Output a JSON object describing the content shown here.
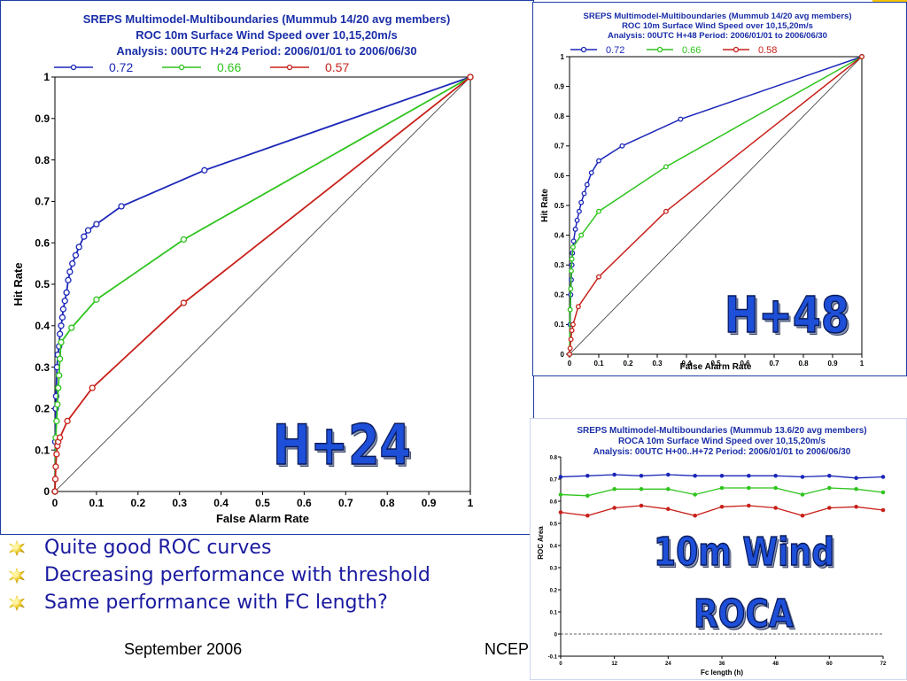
{
  "chart_data": [
    {
      "id": "roc_h24",
      "type": "line",
      "title": [
        "SREPS Multimodel-Multiboundaries   (Mummub 14/20 avg members)",
        "ROC  10m Surface Wind Speed over 10,15,20m/s",
        "Analysis: 00UTC  H+24    Period: 2006/01/01 to 2006/06/30"
      ],
      "xlabel": "False Alarm Rate",
      "ylabel": "Hit Rate",
      "xlim": [
        0,
        1
      ],
      "ylim": [
        0,
        1
      ],
      "xticks": [
        "0",
        "0.1",
        "0.2",
        "0.3",
        "0.4",
        "0.5",
        "0.6",
        "0.7",
        "0.8",
        "0.9",
        "1"
      ],
      "yticks": [
        "0",
        "0.1",
        "0.2",
        "0.3",
        "0.4",
        "0.5",
        "0.6",
        "0.7",
        "0.8",
        "0.9",
        "1"
      ],
      "grid": false,
      "diagonal": true,
      "legend_position": "top",
      "series": [
        {
          "name": "0.72",
          "color": "#1b27b8",
          "points": [
            [
              0,
              0
            ],
            [
              0.001,
              0.12
            ],
            [
              0.002,
              0.2
            ],
            [
              0.003,
              0.23
            ],
            [
              0.005,
              0.3
            ],
            [
              0.007,
              0.33
            ],
            [
              0.01,
              0.35
            ],
            [
              0.012,
              0.38
            ],
            [
              0.015,
              0.4
            ],
            [
              0.018,
              0.42
            ],
            [
              0.02,
              0.44
            ],
            [
              0.024,
              0.46
            ],
            [
              0.028,
              0.48
            ],
            [
              0.032,
              0.51
            ],
            [
              0.036,
              0.53
            ],
            [
              0.042,
              0.55
            ],
            [
              0.05,
              0.57
            ],
            [
              0.058,
              0.59
            ],
            [
              0.07,
              0.615
            ],
            [
              0.08,
              0.63
            ],
            [
              0.1,
              0.645
            ],
            [
              0.16,
              0.688
            ],
            [
              0.36,
              0.775
            ],
            [
              1,
              1
            ]
          ]
        },
        {
          "name": "0.66",
          "color": "#2fc41e",
          "points": [
            [
              0,
              0
            ],
            [
              0.002,
              0.13
            ],
            [
              0.004,
              0.17
            ],
            [
              0.006,
              0.21
            ],
            [
              0.008,
              0.25
            ],
            [
              0.01,
              0.28
            ],
            [
              0.012,
              0.32
            ],
            [
              0.015,
              0.36
            ],
            [
              0.04,
              0.395
            ],
            [
              0.1,
              0.463
            ],
            [
              0.31,
              0.608
            ],
            [
              1,
              1
            ]
          ]
        },
        {
          "name": "0.57",
          "color": "#c8201a",
          "points": [
            [
              0,
              0
            ],
            [
              0.001,
              0.03
            ],
            [
              0.002,
              0.06
            ],
            [
              0.004,
              0.09
            ],
            [
              0.006,
              0.11
            ],
            [
              0.008,
              0.12
            ],
            [
              0.012,
              0.13
            ],
            [
              0.03,
              0.17
            ],
            [
              0.09,
              0.25
            ],
            [
              0.31,
              0.455
            ],
            [
              1,
              1
            ]
          ]
        }
      ]
    },
    {
      "id": "roc_h48",
      "type": "line",
      "title": [
        "SREPS Multimodel-Multiboundaries   (Mummub 14/20 avg members)",
        "ROC  10m Surface Wind Speed over 10,15,20m/s",
        "Analysis: 00UTC  H+48    Period: 2006/01/01 to 2006/06/30"
      ],
      "xlabel": "False Alarm Rate",
      "ylabel": "Hit Rate",
      "xlim": [
        0,
        1
      ],
      "ylim": [
        0,
        1
      ],
      "xticks": [
        "0",
        "0.1",
        "0.2",
        "0.3",
        "0.4",
        "0.5",
        "0.6",
        "0.7",
        "0.8",
        "0.9",
        "1"
      ],
      "yticks": [
        "0",
        "0.1",
        "0.2",
        "0.3",
        "0.4",
        "0.5",
        "0.6",
        "0.7",
        "0.8",
        "0.9",
        "1"
      ],
      "grid": false,
      "diagonal": true,
      "legend_position": "top",
      "series": [
        {
          "name": "0.72",
          "color": "#1b27b8",
          "points": [
            [
              0,
              0
            ],
            [
              0.002,
              0.1
            ],
            [
              0.004,
              0.2
            ],
            [
              0.006,
              0.25
            ],
            [
              0.008,
              0.3
            ],
            [
              0.01,
              0.34
            ],
            [
              0.014,
              0.38
            ],
            [
              0.02,
              0.42
            ],
            [
              0.026,
              0.45
            ],
            [
              0.033,
              0.48
            ],
            [
              0.04,
              0.51
            ],
            [
              0.05,
              0.54
            ],
            [
              0.06,
              0.57
            ],
            [
              0.075,
              0.61
            ],
            [
              0.1,
              0.65
            ],
            [
              0.18,
              0.7
            ],
            [
              0.38,
              0.79
            ],
            [
              1,
              1
            ]
          ]
        },
        {
          "name": "0.66",
          "color": "#2fc41e",
          "points": [
            [
              0,
              0
            ],
            [
              0.002,
              0.15
            ],
            [
              0.004,
              0.22
            ],
            [
              0.006,
              0.28
            ],
            [
              0.008,
              0.32
            ],
            [
              0.012,
              0.36
            ],
            [
              0.04,
              0.4
            ],
            [
              0.1,
              0.48
            ],
            [
              0.33,
              0.63
            ],
            [
              1,
              1
            ]
          ]
        },
        {
          "name": "0.58",
          "color": "#c8201a",
          "points": [
            [
              0,
              0
            ],
            [
              0.002,
              0.02
            ],
            [
              0.005,
              0.05
            ],
            [
              0.008,
              0.08
            ],
            [
              0.012,
              0.1
            ],
            [
              0.03,
              0.16
            ],
            [
              0.1,
              0.26
            ],
            [
              0.33,
              0.48
            ],
            [
              1,
              1
            ]
          ]
        }
      ]
    },
    {
      "id": "roca",
      "type": "line",
      "title": [
        "SREPS Multimodel-Multiboundaries   (Mummub 13.6/20 avg members)",
        "ROCA  10m Surface Wind Speed over 10,15,20m/s",
        "Analysis: 00UTC  H+00..H+72   Period: 2006/01/01 to 2006/06/30"
      ],
      "xlabel": "Fc length (h)",
      "ylabel": "ROC Area",
      "xlim": [
        0,
        72
      ],
      "ylim": [
        -0.1,
        0.8
      ],
      "xticks": [
        "0",
        "12",
        "24",
        "36",
        "48",
        "60",
        "72"
      ],
      "yticks": [
        "-0.1",
        "0",
        "0.1",
        "0.2",
        "0.3",
        "0.4",
        "0.5",
        "0.6",
        "0.7",
        "0.8"
      ],
      "grid": false,
      "zero_line": "dashed",
      "series": [
        {
          "name": "",
          "color": "#1b27b8",
          "x": [
            0,
            6,
            12,
            18,
            24,
            30,
            36,
            42,
            48,
            54,
            60,
            66,
            72
          ],
          "values": [
            0.71,
            0.715,
            0.72,
            0.715,
            0.72,
            0.715,
            0.715,
            0.715,
            0.715,
            0.71,
            0.715,
            0.705,
            0.71
          ]
        },
        {
          "name": "",
          "color": "#2fc41e",
          "x": [
            0,
            6,
            12,
            18,
            24,
            30,
            36,
            42,
            48,
            54,
            60,
            66,
            72
          ],
          "values": [
            0.63,
            0.625,
            0.655,
            0.655,
            0.655,
            0.63,
            0.66,
            0.66,
            0.66,
            0.63,
            0.66,
            0.655,
            0.64
          ]
        },
        {
          "name": "",
          "color": "#c8201a",
          "x": [
            0,
            6,
            12,
            18,
            24,
            30,
            36,
            42,
            48,
            54,
            60,
            66,
            72
          ],
          "values": [
            0.55,
            0.535,
            0.57,
            0.58,
            0.565,
            0.535,
            0.575,
            0.58,
            0.57,
            0.535,
            0.57,
            0.575,
            0.56
          ]
        }
      ]
    }
  ],
  "overlays": {
    "h24": "H+24",
    "h48": "H+48",
    "wind": "10m Wind",
    "roca": "ROCA"
  },
  "bullets": [
    "Quite good ROC curves",
    "Decreasing performance with threshold",
    "Same performance with FC length?"
  ],
  "footer": {
    "date": "September 2006",
    "org": "NCEP"
  }
}
